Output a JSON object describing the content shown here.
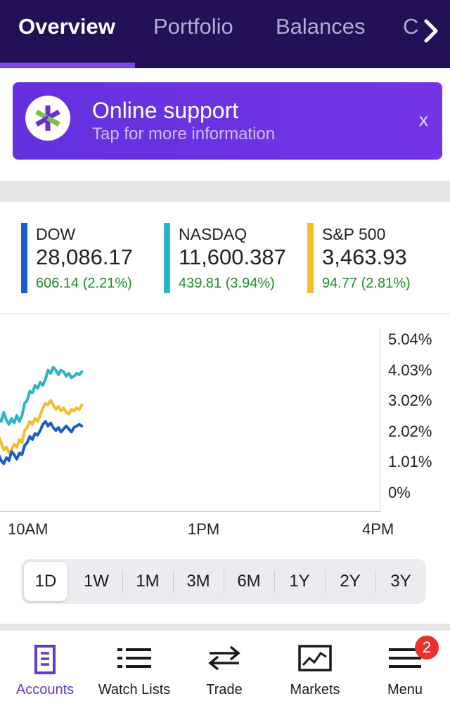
{
  "tabs": [
    {
      "label": "Overview",
      "active": true
    },
    {
      "label": "Portfolio",
      "active": false
    },
    {
      "label": "Balances",
      "active": false
    },
    {
      "label": "C",
      "active": false
    }
  ],
  "tabs_next_icon": "chevron-right-icon",
  "banner": {
    "logo_icon": "etrade-logo-icon",
    "title": "Online support",
    "subtitle": "Tap for more information",
    "close_label": "x"
  },
  "indices": [
    {
      "name": "DOW",
      "value": "28,086.17",
      "change": "606.14 (2.21%)",
      "color": "#1a5fc4"
    },
    {
      "name": "NASDAQ",
      "value": "11,600.387",
      "change": "439.81 (3.94%)",
      "color": "#2db3c6"
    },
    {
      "name": "S&P 500",
      "value": "3,463.93",
      "change": "94.77 (2.81%)",
      "color": "#f3bd2d"
    }
  ],
  "chart_data": {
    "type": "line",
    "x_ticks": [
      "10AM",
      "1PM",
      "4PM"
    ],
    "y_ticks": [
      "5.04%",
      "4.03%",
      "3.02%",
      "2.02%",
      "1.01%",
      "0%"
    ],
    "ylim": [
      0,
      5.04
    ],
    "series": [
      {
        "name": "NASDAQ",
        "color": "#2db3c6",
        "values": [
          2.4,
          2.3,
          2.6,
          2.35,
          2.2,
          2.4,
          2.25,
          2.5,
          2.3,
          2.5,
          2.9,
          3.0,
          3.3,
          3.25,
          3.5,
          3.4,
          3.6,
          3.5,
          3.7,
          4.0,
          3.9,
          4.1,
          4.0,
          3.85,
          4.0,
          3.95,
          3.8,
          3.9,
          3.75,
          3.8,
          3.9,
          3.85,
          3.95
        ]
      },
      {
        "name": "S&P 500",
        "color": "#f3bd2d",
        "values": [
          1.8,
          1.6,
          1.35,
          1.45,
          1.25,
          1.35,
          1.55,
          1.45,
          1.7,
          1.6,
          2.0,
          2.1,
          2.3,
          2.2,
          2.4,
          2.3,
          2.5,
          2.75,
          2.9,
          2.85,
          3.0,
          2.85,
          2.7,
          2.8,
          2.65,
          2.75,
          2.6,
          2.55,
          2.7,
          2.65,
          2.75,
          2.7,
          2.85
        ]
      },
      {
        "name": "DOW",
        "color": "#1a5fc4",
        "values": [
          1.2,
          1.0,
          0.9,
          1.1,
          1.0,
          1.3,
          1.2,
          1.05,
          1.25,
          1.2,
          1.5,
          1.6,
          1.8,
          1.7,
          1.9,
          1.85,
          2.0,
          2.2,
          2.3,
          2.15,
          2.25,
          2.1,
          2.0,
          2.1,
          1.95,
          2.05,
          2.15,
          2.05,
          1.95,
          2.1,
          2.15,
          2.2,
          2.15
        ]
      }
    ]
  },
  "ranges": [
    {
      "label": "1D",
      "active": true
    },
    {
      "label": "1W",
      "active": false
    },
    {
      "label": "1M",
      "active": false
    },
    {
      "label": "3M",
      "active": false
    },
    {
      "label": "6M",
      "active": false
    },
    {
      "label": "1Y",
      "active": false
    },
    {
      "label": "2Y",
      "active": false
    },
    {
      "label": "3Y",
      "active": false
    }
  ],
  "nav": [
    {
      "label": "Accounts",
      "icon": "document-icon",
      "active": true
    },
    {
      "label": "Watch Lists",
      "icon": "list-icon",
      "active": false
    },
    {
      "label": "Trade",
      "icon": "swap-arrows-icon",
      "active": false
    },
    {
      "label": "Markets",
      "icon": "chart-icon",
      "active": false
    },
    {
      "label": "Menu",
      "icon": "hamburger-icon",
      "active": false
    }
  ],
  "menu_badge": "2",
  "colors": {
    "header_bg": "#241056",
    "accent": "#7b45e8",
    "positive": "#1e8c2a"
  }
}
